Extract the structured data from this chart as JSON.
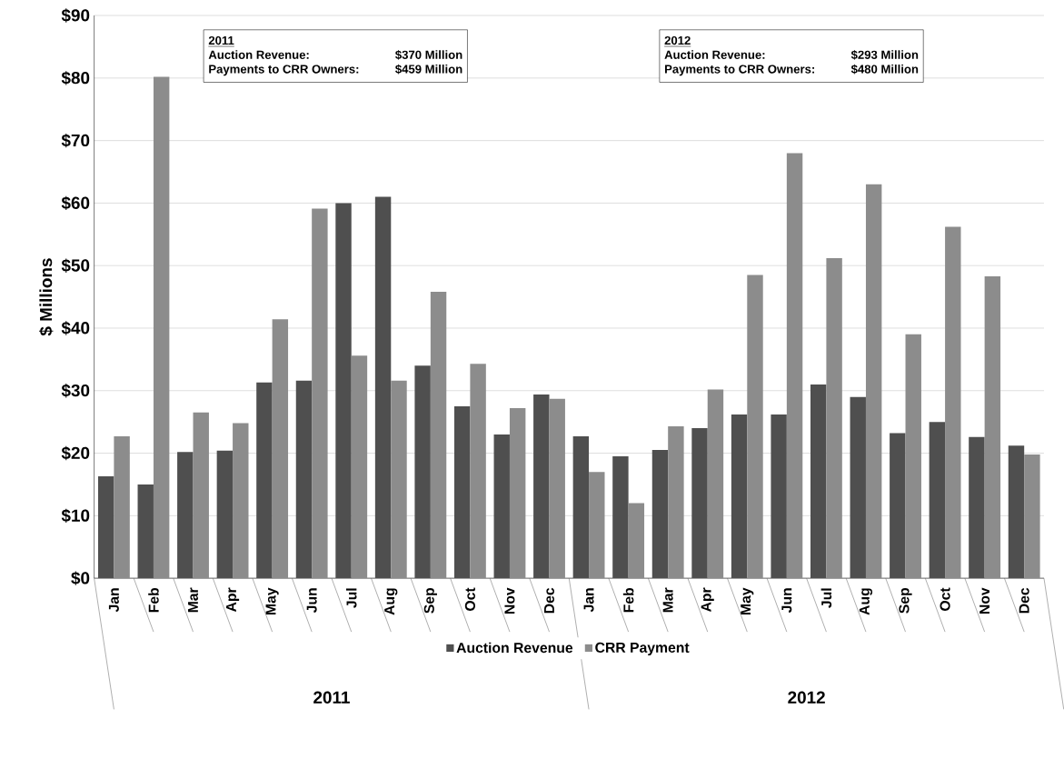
{
  "chart_data": {
    "type": "bar",
    "ylabel": "$ Millions",
    "categories": [
      "Jan",
      "Feb",
      "Mar",
      "Apr",
      "May",
      "Jun",
      "Jul",
      "Aug",
      "Sep",
      "Oct",
      "Nov",
      "Dec",
      "Jan",
      "Feb",
      "Mar",
      "Apr",
      "May",
      "Jun",
      "Jul",
      "Aug",
      "Sep",
      "Oct",
      "Nov",
      "Dec"
    ],
    "series": [
      {
        "name": "Auction Revenue",
        "color": "#4f4f4f",
        "values": [
          16.3,
          15,
          20.2,
          20.4,
          31.3,
          31.6,
          60,
          61,
          34,
          27.5,
          23,
          29.4,
          22.7,
          19.5,
          20.5,
          24,
          26.2,
          26.2,
          31,
          29,
          23.2,
          25,
          22.6,
          21.2
        ]
      },
      {
        "name": "CRR Payment",
        "color": "#8c8c8c",
        "values": [
          22.7,
          80.2,
          26.5,
          24.8,
          41.4,
          59.1,
          35.6,
          31.6,
          45.8,
          34.3,
          27.2,
          28.7,
          17,
          12,
          24.3,
          30.2,
          48.5,
          68,
          51.2,
          63,
          39,
          56.2,
          48.3,
          19.8
        ]
      }
    ],
    "ylim": [
      0,
      90
    ],
    "yticks": [
      {
        "value": 0,
        "label": "$0"
      },
      {
        "value": 10,
        "label": "$10"
      },
      {
        "value": 20,
        "label": "$20"
      },
      {
        "value": 30,
        "label": "$30"
      },
      {
        "value": 40,
        "label": "$40"
      },
      {
        "value": 50,
        "label": "$50"
      },
      {
        "value": 60,
        "label": "$60"
      },
      {
        "value": 70,
        "label": "$70"
      },
      {
        "value": 80,
        "label": "$80"
      },
      {
        "value": 90,
        "label": "$90"
      }
    ],
    "grid": "y",
    "legend": "bottom",
    "annotations": [
      "2011",
      "Auction Revenue:",
      "$370 Million",
      "Payments to CRR Owners:",
      "$459 Million",
      "2012",
      "Auction Revenue:",
      "$293 Million",
      "Payments to CRR Owners:",
      "$480 Million",
      "2011",
      "2012"
    ]
  }
}
